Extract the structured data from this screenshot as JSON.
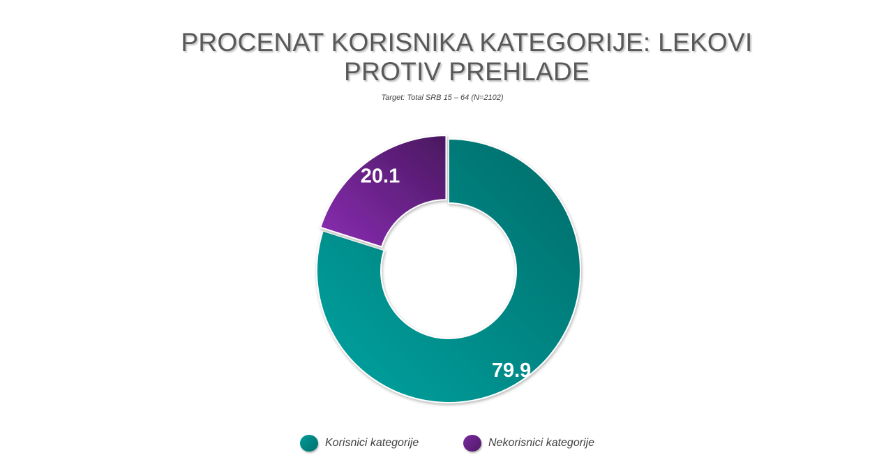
{
  "chart_data": {
    "type": "pie",
    "title_line1": "PROCENAT KORISNIKA KATEGORIJE: LEKOVI",
    "title_line2": "PROTIV PREHLADE",
    "subtitle": "Target: Total SRB 15 – 64 (N=2102)",
    "donut": true,
    "series": [
      {
        "name": "Korisnici kategorije",
        "value": 79.9,
        "label": "79.9",
        "color": "#009b98",
        "color_dark": "#006f6d"
      },
      {
        "name": "Nekorisnici kategorije",
        "value": 20.1,
        "label": "20.1",
        "color": "#7a2aa0",
        "color_dark": "#4f1a66"
      }
    ],
    "legend_position": "bottom"
  }
}
